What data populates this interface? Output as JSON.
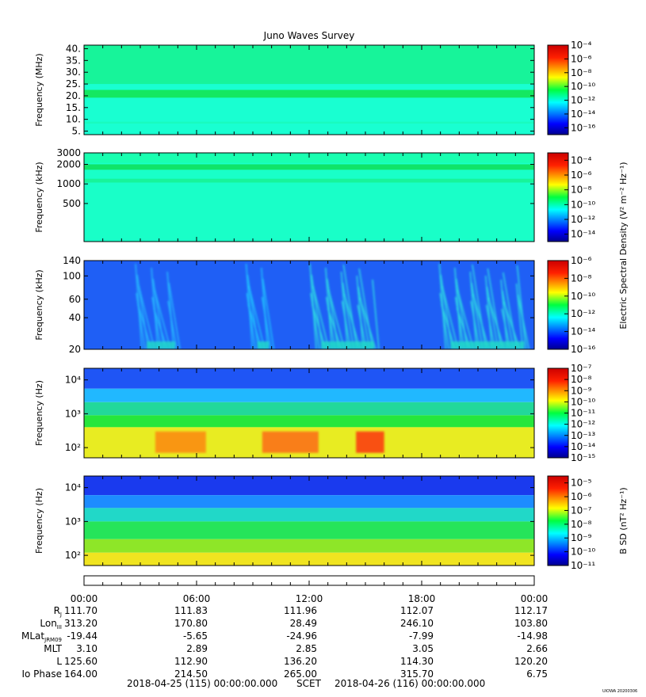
{
  "title": "Juno Waves Survey",
  "footer": {
    "start": "2018-04-25 (115) 00:00:00.000",
    "middle": "SCET",
    "end": "2018-04-26 (116) 00:00:00.000",
    "stamp": "UIOWA 20200306"
  },
  "shared_colorbar_label": "Electric Spectral Density (V² m⁻² Hz⁻¹)",
  "chart_data": [
    {
      "type": "heatmap",
      "panel": "hfwbr",
      "ylabel": "Frequency (MHz)",
      "yscale": "linear",
      "ylim": [
        3.5,
        41.5
      ],
      "yticks": [
        5,
        10,
        15,
        20,
        25,
        30,
        35,
        40
      ],
      "ytick_labels": [
        "5.",
        "10.",
        "15.",
        "20.",
        "25.",
        "30.",
        "35.",
        "40."
      ],
      "colorbar": {
        "scale": "log",
        "range_exp": [
          -17,
          -4
        ],
        "tick_exps": [
          -16,
          -14,
          -12,
          -10,
          -8,
          -6,
          -4
        ]
      },
      "background": "#19ffd1",
      "bands": [
        {
          "y0": 19.2,
          "y1": 22.5,
          "color": "#14e862"
        },
        {
          "y0": 25.0,
          "y1": 41.5,
          "color": "#17f49a"
        },
        {
          "y0": 8.2,
          "y1": 9.0,
          "color": "#19fbbf"
        }
      ]
    },
    {
      "type": "heatmap",
      "panel": "hfwbr-low",
      "ylabel": "Frequency (kHz)",
      "yscale": "log",
      "ylim": [
        130,
        3000
      ],
      "yticks": [
        500,
        1000,
        2000,
        3000
      ],
      "ytick_labels": [
        "500",
        "1000",
        "2000",
        "3000"
      ],
      "colorbar": {
        "scale": "log",
        "range_exp": [
          -15,
          -3
        ],
        "tick_exps": [
          -14,
          -12,
          -10,
          -8,
          -6,
          -4
        ]
      },
      "background": "#19ffc8",
      "bands": [
        {
          "y0": 1650,
          "y1": 2000,
          "color": "#10e468"
        },
        {
          "y0": 1050,
          "y1": 1200,
          "color": "#17f49a"
        },
        {
          "y0": 2100,
          "y1": 3000,
          "color": "#19ffb0"
        }
      ]
    },
    {
      "type": "heatmap",
      "panel": "lfr-hi",
      "ylabel": "Frequency (kHz)",
      "yscale": "log",
      "ylim": [
        20,
        140
      ],
      "yticks": [
        20,
        40,
        60,
        100,
        140
      ],
      "ytick_labels": [
        "20",
        "40",
        "60",
        "100",
        "140"
      ],
      "colorbar": {
        "scale": "log",
        "range_exp": [
          -16,
          -6
        ],
        "tick_exps": [
          -16,
          -14,
          -12,
          -10,
          -8,
          -6
        ]
      },
      "background": "#1f5ff5",
      "bursts": [
        {
          "t0": 3.0,
          "t1": 5.2,
          "color": "#26c8ff"
        },
        {
          "t0": 8.9,
          "t1": 10.2,
          "color": "#22d2ff"
        },
        {
          "t0": 12.3,
          "t1": 15.8,
          "color": "#2ff0e0"
        },
        {
          "t0": 19.2,
          "t1": 23.8,
          "color": "#2ff0e0"
        }
      ]
    },
    {
      "type": "heatmap",
      "panel": "lfr-lo",
      "ylabel": "Frequency (Hz)",
      "yscale": "log",
      "ylim": [
        50,
        22000
      ],
      "yticks": [
        100,
        1000,
        10000
      ],
      "ytick_labels": [
        "10²",
        "10³",
        "10⁴"
      ],
      "colorbar": {
        "scale": "log",
        "range_exp": [
          -15,
          -7
        ],
        "tick_exps": [
          -15,
          -14,
          -13,
          -12,
          -11,
          -10,
          -9,
          -8,
          -7
        ]
      },
      "bands": [
        {
          "y0": 5500,
          "y1": 22000,
          "color": "#1f55f5"
        },
        {
          "y0": 2200,
          "y1": 5500,
          "color": "#21b8ff"
        },
        {
          "y0": 900,
          "y1": 2200,
          "color": "#22d89a"
        },
        {
          "y0": 400,
          "y1": 900,
          "color": "#26e63c"
        },
        {
          "y0": 50,
          "y1": 400,
          "color": "#e8ec22"
        }
      ],
      "hotspots": [
        {
          "t0": 3.8,
          "t1": 6.5,
          "color": "#ff7a10"
        },
        {
          "t0": 9.5,
          "t1": 12.5,
          "color": "#ff5a12"
        },
        {
          "t0": 14.5,
          "t1": 16.0,
          "color": "#ff1a10"
        }
      ]
    },
    {
      "type": "heatmap",
      "panel": "magnetic",
      "ylabel": "Frequency (Hz)",
      "yscale": "log",
      "ylim": [
        50,
        22000
      ],
      "yticks": [
        100,
        1000,
        10000
      ],
      "ytick_labels": [
        "10²",
        "10³",
        "10⁴"
      ],
      "colorbar": {
        "label": "B SD (nT² Hz⁻¹)",
        "scale": "log",
        "range_exp": [
          -11,
          -4.5
        ],
        "tick_exps": [
          -11,
          -10,
          -9,
          -8,
          -7,
          -6,
          -5
        ]
      },
      "bands": [
        {
          "y0": 6000,
          "y1": 22000,
          "color": "#1a3aee"
        },
        {
          "y0": 2500,
          "y1": 6000,
          "color": "#1d8cff"
        },
        {
          "y0": 1000,
          "y1": 2500,
          "color": "#21d8c8"
        },
        {
          "y0": 300,
          "y1": 1000,
          "color": "#26e45a"
        },
        {
          "y0": 120,
          "y1": 300,
          "color": "#8ee628"
        },
        {
          "y0": 50,
          "y1": 120,
          "color": "#f0e420"
        }
      ]
    }
  ],
  "xaxis": {
    "ticks_hours": [
      0,
      6,
      12,
      18,
      24
    ],
    "tick_labels": [
      "00:00",
      "06:00",
      "12:00",
      "18:00",
      "00:00"
    ]
  },
  "ephemeris": {
    "rows": [
      {
        "label": "R_J",
        "label_main": "R",
        "label_sub": "J",
        "values": [
          "111.70",
          "111.83",
          "111.96",
          "112.07",
          "112.17"
        ]
      },
      {
        "label": "Lon_III",
        "label_main": "Lon",
        "label_sub": "III",
        "values": [
          "313.20",
          "170.80",
          "28.49",
          "246.10",
          "103.80"
        ]
      },
      {
        "label": "MLat_JRM09",
        "label_main": "MLat",
        "label_sub": "JRM09",
        "values": [
          "-19.44",
          "-5.65",
          "-24.96",
          "-7.99",
          "-14.98"
        ]
      },
      {
        "label": "MLT",
        "label_main": "MLT",
        "label_sub": "",
        "values": [
          "3.10",
          "2.89",
          "2.85",
          "3.05",
          "2.66"
        ]
      },
      {
        "label": "L",
        "label_main": "L",
        "label_sub": "",
        "values": [
          "125.60",
          "112.90",
          "136.20",
          "114.30",
          "120.20"
        ]
      },
      {
        "label": "Io Phase",
        "label_main": "Io Phase",
        "label_sub": "",
        "values": [
          "164.00",
          "214.50",
          "265.00",
          "315.70",
          "6.75"
        ]
      }
    ]
  }
}
